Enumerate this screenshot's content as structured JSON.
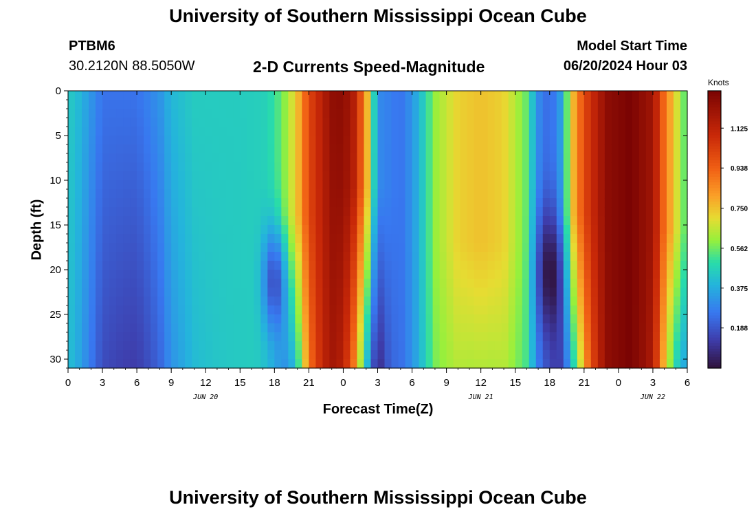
{
  "header": {
    "title": "University of Southern Mississippi Ocean Cube",
    "station": "PTBM6",
    "coords": "30.2120N  88.5050W",
    "subtitle": "2-D Currents Speed-Magnitude",
    "model_start_label": "Model Start Time",
    "model_start_value": "06/20/2024 Hour 03"
  },
  "footer": {
    "title": "University of Southern Mississippi Ocean Cube"
  },
  "chart_data": {
    "type": "heatmap",
    "xlabel": "Forecast Time(Z)",
    "ylabel": "Depth (ft)",
    "colorbar_label": "Knots",
    "colorbar_ticks": [
      "0.188",
      "0.375",
      "0.562",
      "0.750",
      "0.938",
      "1.125"
    ],
    "colorbar_range": [
      0,
      1.3
    ],
    "x_unit": "hours since 06/20 00Z",
    "x_range": [
      0,
      54
    ],
    "x_ticks": [
      {
        "h": 0,
        "label": "0"
      },
      {
        "h": 3,
        "label": "3"
      },
      {
        "h": 6,
        "label": "6"
      },
      {
        "h": 9,
        "label": "9"
      },
      {
        "h": 12,
        "label": "12"
      },
      {
        "h": 15,
        "label": "15"
      },
      {
        "h": 18,
        "label": "18"
      },
      {
        "h": 21,
        "label": "21"
      },
      {
        "h": 24,
        "label": "0"
      },
      {
        "h": 27,
        "label": "3"
      },
      {
        "h": 30,
        "label": "6"
      },
      {
        "h": 33,
        "label": "9"
      },
      {
        "h": 36,
        "label": "12"
      },
      {
        "h": 39,
        "label": "15"
      },
      {
        "h": 42,
        "label": "18"
      },
      {
        "h": 45,
        "label": "21"
      },
      {
        "h": 48,
        "label": "0"
      },
      {
        "h": 51,
        "label": "3"
      },
      {
        "h": 54,
        "label": "6"
      }
    ],
    "date_labels": [
      {
        "h": 12,
        "label": "JUN 20"
      },
      {
        "h": 36,
        "label": "JUN 21"
      },
      {
        "h": 51,
        "label": "JUN 22"
      }
    ],
    "y_range": [
      0,
      31
    ],
    "y_ticks": [
      0,
      5,
      10,
      15,
      20,
      25,
      30
    ],
    "sample_speed_by_hour": [
      [
        0,
        0.45
      ],
      [
        1,
        0.4
      ],
      [
        3,
        0.25
      ],
      [
        6,
        0.25
      ],
      [
        8,
        0.32
      ],
      [
        9,
        0.4
      ],
      [
        11,
        0.45
      ],
      [
        13,
        0.45
      ],
      [
        15,
        0.45
      ],
      [
        17,
        0.46
      ],
      [
        18,
        0.5
      ],
      [
        19,
        0.6
      ],
      [
        20,
        0.75
      ],
      [
        21,
        1.0
      ],
      [
        23,
        1.2
      ],
      [
        24,
        1.2
      ],
      [
        25,
        1.1
      ],
      [
        26,
        0.8
      ],
      [
        27,
        0.3
      ],
      [
        29,
        0.25
      ],
      [
        30,
        0.32
      ],
      [
        31,
        0.45
      ],
      [
        32,
        0.6
      ],
      [
        34,
        0.72
      ],
      [
        36,
        0.75
      ],
      [
        38,
        0.72
      ],
      [
        40,
        0.55
      ],
      [
        41,
        0.3
      ],
      [
        42,
        0.22
      ],
      [
        43,
        0.35
      ],
      [
        44,
        0.75
      ],
      [
        45,
        1.0
      ],
      [
        47,
        1.25
      ],
      [
        49,
        1.3
      ],
      [
        51,
        1.2
      ],
      [
        52,
        0.9
      ],
      [
        53,
        0.7
      ],
      [
        54,
        0.5
      ]
    ],
    "depth_profile_note": ""
  }
}
